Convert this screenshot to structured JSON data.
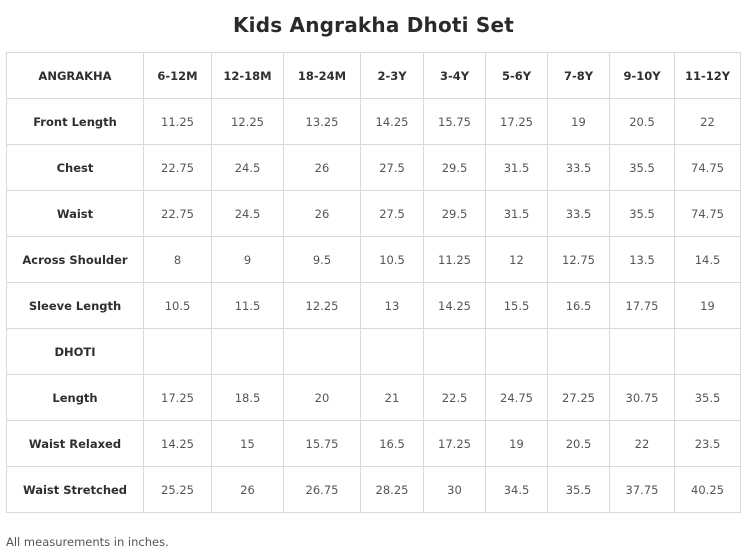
{
  "title": "Kids Angrakha Dhoti Set",
  "header": {
    "label": "ANGRAKHA",
    "sizes": [
      "6-12M",
      "12-18M",
      "18-24M",
      "2-3Y",
      "3-4Y",
      "5-6Y",
      "7-8Y",
      "9-10Y",
      "11-12Y"
    ]
  },
  "rows": [
    {
      "label": "Front Length",
      "values": [
        "11.25",
        "12.25",
        "13.25",
        "14.25",
        "15.75",
        "17.25",
        "19",
        "20.5",
        "22"
      ]
    },
    {
      "label": "Chest",
      "values": [
        "22.75",
        "24.5",
        "26",
        "27.5",
        "29.5",
        "31.5",
        "33.5",
        "35.5",
        "74.75"
      ]
    },
    {
      "label": "Waist",
      "values": [
        "22.75",
        "24.5",
        "26",
        "27.5",
        "29.5",
        "31.5",
        "33.5",
        "35.5",
        "74.75"
      ]
    },
    {
      "label": "Across Shoulder",
      "values": [
        "8",
        "9",
        "9.5",
        "10.5",
        "11.25",
        "12",
        "12.75",
        "13.5",
        "14.5"
      ]
    },
    {
      "label": "Sleeve Length",
      "values": [
        "10.5",
        "11.5",
        "12.25",
        "13",
        "14.25",
        "15.5",
        "16.5",
        "17.75",
        "19"
      ]
    },
    {
      "label": "DHOTI",
      "values": [
        "",
        "",
        "",
        "",
        "",
        "",
        "",
        "",
        ""
      ]
    },
    {
      "label": "Length",
      "values": [
        "17.25",
        "18.5",
        "20",
        "21",
        "22.5",
        "24.75",
        "27.25",
        "30.75",
        "35.5"
      ]
    },
    {
      "label": "Waist Relaxed",
      "values": [
        "14.25",
        "15",
        "15.75",
        "16.5",
        "17.25",
        "19",
        "20.5",
        "22",
        "23.5"
      ]
    },
    {
      "label": "Waist Stretched",
      "values": [
        "25.25",
        "26",
        "26.75",
        "28.25",
        "30",
        "34.5",
        "35.5",
        "37.75",
        "40.25"
      ]
    }
  ],
  "footnote": "All measurements in inches."
}
